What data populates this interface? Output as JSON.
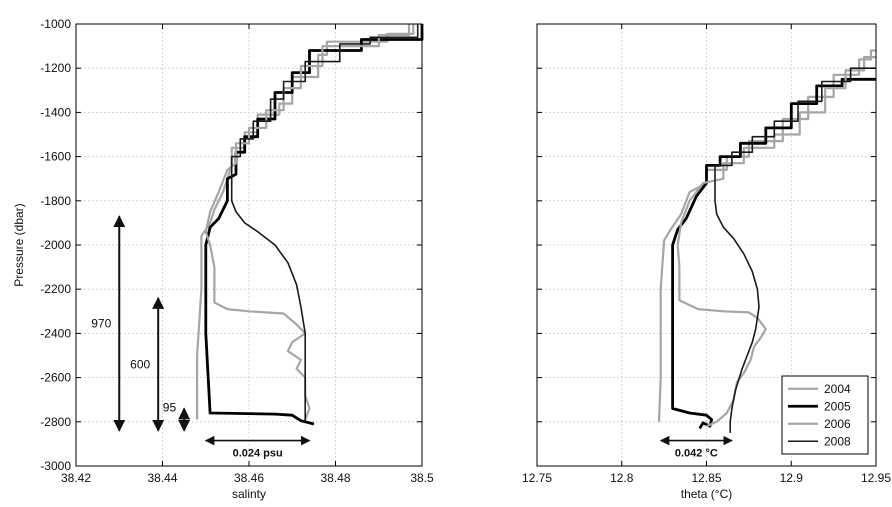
{
  "chart_data": [
    {
      "type": "line",
      "xlabel": "salinty",
      "ylabel": "Pressure (dbar)",
      "xlim": [
        38.42,
        38.5
      ],
      "ylim": [
        -3000,
        -1000
      ],
      "xticks": [
        "38.42",
        "38.44",
        "38.46",
        "38.48",
        "38.5"
      ],
      "yticks": [
        "-1000",
        "-1200",
        "-1400",
        "-1600",
        "-1800",
        "-2000",
        "-2200",
        "-2400",
        "-2600",
        "-2800",
        "-3000"
      ],
      "grid": true,
      "series": [
        {
          "name": "2004",
          "color": "#a6a6a6",
          "width": 2.2,
          "points": [
            [
              38.498,
              -1000
            ],
            [
              38.498,
              -1045
            ],
            [
              38.492,
              -1045
            ],
            [
              38.492,
              -1080
            ],
            [
              38.478,
              -1080
            ],
            [
              38.478,
              -1140
            ],
            [
              38.476,
              -1140
            ],
            [
              38.476,
              -1240
            ],
            [
              38.47,
              -1240
            ],
            [
              38.47,
              -1360
            ],
            [
              38.467,
              -1360
            ],
            [
              38.467,
              -1410
            ],
            [
              38.462,
              -1410
            ],
            [
              38.462,
              -1490
            ],
            [
              38.459,
              -1490
            ],
            [
              38.459,
              -1560
            ],
            [
              38.456,
              -1560
            ],
            [
              38.456,
              -1640
            ],
            [
              38.455,
              -1700
            ],
            [
              38.454,
              -1760
            ],
            [
              38.452,
              -1840
            ],
            [
              38.451,
              -1900
            ],
            [
              38.449,
              -1960
            ],
            [
              38.449,
              -2200
            ],
            [
              38.448,
              -2500
            ],
            [
              38.448,
              -2790
            ]
          ]
        },
        {
          "name": "2005",
          "color": "#000000",
          "width": 2.8,
          "points": [
            [
              38.5,
              -1000
            ],
            [
              38.5,
              -1070
            ],
            [
              38.486,
              -1070
            ],
            [
              38.486,
              -1120
            ],
            [
              38.474,
              -1120
            ],
            [
              38.474,
              -1220
            ],
            [
              38.47,
              -1220
            ],
            [
              38.47,
              -1310
            ],
            [
              38.466,
              -1310
            ],
            [
              38.466,
              -1430
            ],
            [
              38.462,
              -1430
            ],
            [
              38.462,
              -1510
            ],
            [
              38.459,
              -1510
            ],
            [
              38.459,
              -1580
            ],
            [
              38.457,
              -1580
            ],
            [
              38.457,
              -1680
            ],
            [
              38.455,
              -1700
            ],
            [
              38.455,
              -1800
            ],
            [
              38.453,
              -1880
            ],
            [
              38.451,
              -1920
            ],
            [
              38.45,
              -2000
            ],
            [
              38.45,
              -2400
            ],
            [
              38.451,
              -2760
            ],
            [
              38.466,
              -2765
            ],
            [
              38.47,
              -2770
            ],
            [
              38.472,
              -2795
            ],
            [
              38.475,
              -2810
            ]
          ]
        },
        {
          "name": "2006",
          "color": "#a6a6a6",
          "width": 2.2,
          "points": [
            [
              38.497,
              -1000
            ],
            [
              38.497,
              -1050
            ],
            [
              38.49,
              -1050
            ],
            [
              38.49,
              -1100
            ],
            [
              38.477,
              -1100
            ],
            [
              38.477,
              -1190
            ],
            [
              38.472,
              -1190
            ],
            [
              38.472,
              -1290
            ],
            [
              38.468,
              -1290
            ],
            [
              38.468,
              -1390
            ],
            [
              38.464,
              -1390
            ],
            [
              38.464,
              -1470
            ],
            [
              38.46,
              -1470
            ],
            [
              38.46,
              -1540
            ],
            [
              38.457,
              -1540
            ],
            [
              38.457,
              -1630
            ],
            [
              38.455,
              -1660
            ],
            [
              38.453,
              -1760
            ],
            [
              38.451,
              -1850
            ],
            [
              38.45,
              -1940
            ],
            [
              38.451,
              -2000
            ],
            [
              38.452,
              -2100
            ],
            [
              38.452,
              -2260
            ],
            [
              38.455,
              -2290
            ],
            [
              38.46,
              -2300
            ],
            [
              38.468,
              -2310
            ],
            [
              38.471,
              -2360
            ],
            [
              38.473,
              -2400
            ],
            [
              38.47,
              -2440
            ],
            [
              38.469,
              -2480
            ],
            [
              38.472,
              -2520
            ],
            [
              38.471,
              -2560
            ],
            [
              38.473,
              -2600
            ],
            [
              38.473,
              -2680
            ],
            [
              38.474,
              -2740
            ],
            [
              38.473,
              -2790
            ]
          ]
        },
        {
          "name": "2008",
          "color": "#1a1a1a",
          "width": 1.6,
          "points": [
            [
              38.499,
              -1000
            ],
            [
              38.499,
              -1060
            ],
            [
              38.488,
              -1060
            ],
            [
              38.488,
              -1090
            ],
            [
              38.481,
              -1090
            ],
            [
              38.481,
              -1170
            ],
            [
              38.473,
              -1170
            ],
            [
              38.473,
              -1260
            ],
            [
              38.468,
              -1260
            ],
            [
              38.468,
              -1340
            ],
            [
              38.465,
              -1340
            ],
            [
              38.465,
              -1440
            ],
            [
              38.461,
              -1440
            ],
            [
              38.461,
              -1520
            ],
            [
              38.458,
              -1520
            ],
            [
              38.458,
              -1600
            ],
            [
              38.456,
              -1600
            ],
            [
              38.456,
              -1700
            ],
            [
              38.456,
              -1800
            ],
            [
              38.457,
              -1850
            ],
            [
              38.459,
              -1900
            ],
            [
              38.462,
              -1940
            ],
            [
              38.466,
              -2000
            ],
            [
              38.469,
              -2080
            ],
            [
              38.471,
              -2180
            ],
            [
              38.472,
              -2280
            ],
            [
              38.473,
              -2400
            ],
            [
              38.473,
              -2550
            ],
            [
              38.473,
              -2700
            ],
            [
              38.473,
              -2800
            ]
          ]
        }
      ],
      "annotations": [
        {
          "type": "range-arrow",
          "axis": "y",
          "x": 38.43,
          "from": -1870,
          "to": -2840,
          "label": "970"
        },
        {
          "type": "range-arrow",
          "axis": "y",
          "x": 38.439,
          "from": -2240,
          "to": -2840,
          "label": "600"
        },
        {
          "type": "range-arrow",
          "axis": "y",
          "x": 38.445,
          "from": -2740,
          "to": -2840,
          "label": "95"
        },
        {
          "type": "range-arrow",
          "axis": "x",
          "y": -2885,
          "from": 38.45,
          "to": 38.474,
          "label": "0.024 psu"
        }
      ]
    },
    {
      "type": "line",
      "xlabel": "theta  (°C)",
      "ylabel": "",
      "xlim": [
        12.75,
        12.95
      ],
      "ylim": [
        -3000,
        -1000
      ],
      "xticks": [
        "12.75",
        "12.8",
        "12.85",
        "12.9",
        "12.95"
      ],
      "grid": true,
      "legend": "bottom-right",
      "series": [
        {
          "name": "2004",
          "color": "#a6a6a6",
          "width": 2.2,
          "points": [
            [
              12.95,
              -1120
            ],
            [
              12.947,
              -1120
            ],
            [
              12.947,
              -1160
            ],
            [
              12.94,
              -1160
            ],
            [
              12.94,
              -1230
            ],
            [
              12.925,
              -1230
            ],
            [
              12.925,
              -1330
            ],
            [
              12.91,
              -1330
            ],
            [
              12.91,
              -1430
            ],
            [
              12.895,
              -1430
            ],
            [
              12.895,
              -1530
            ],
            [
              12.875,
              -1530
            ],
            [
              12.875,
              -1600
            ],
            [
              12.862,
              -1600
            ],
            [
              12.862,
              -1660
            ],
            [
              12.85,
              -1660
            ],
            [
              12.85,
              -1720
            ],
            [
              12.84,
              -1760
            ],
            [
              12.835,
              -1860
            ],
            [
              12.828,
              -1940
            ],
            [
              12.825,
              -1980
            ],
            [
              12.823,
              -2200
            ],
            [
              12.823,
              -2600
            ],
            [
              12.822,
              -2800
            ]
          ]
        },
        {
          "name": "2005",
          "color": "#000000",
          "width": 2.8,
          "points": [
            [
              12.95,
              -1250
            ],
            [
              12.93,
              -1250
            ],
            [
              12.93,
              -1280
            ],
            [
              12.915,
              -1280
            ],
            [
              12.915,
              -1360
            ],
            [
              12.9,
              -1360
            ],
            [
              12.9,
              -1470
            ],
            [
              12.885,
              -1470
            ],
            [
              12.885,
              -1540
            ],
            [
              12.87,
              -1540
            ],
            [
              12.87,
              -1600
            ],
            [
              12.858,
              -1600
            ],
            [
              12.858,
              -1640
            ],
            [
              12.85,
              -1640
            ],
            [
              12.85,
              -1720
            ],
            [
              12.844,
              -1780
            ],
            [
              12.838,
              -1880
            ],
            [
              12.833,
              -1930
            ],
            [
              12.83,
              -2000
            ],
            [
              12.83,
              -2500
            ],
            [
              12.83,
              -2740
            ],
            [
              12.84,
              -2760
            ],
            [
              12.85,
              -2770
            ],
            [
              12.853,
              -2790
            ],
            [
              12.852,
              -2820
            ],
            [
              12.848,
              -2805
            ],
            [
              12.846,
              -2830
            ]
          ]
        },
        {
          "name": "2006",
          "color": "#a6a6a6",
          "width": 2.2,
          "points": [
            [
              12.95,
              -1150
            ],
            [
              12.943,
              -1150
            ],
            [
              12.943,
              -1210
            ],
            [
              12.932,
              -1210
            ],
            [
              12.932,
              -1290
            ],
            [
              12.92,
              -1290
            ],
            [
              12.92,
              -1400
            ],
            [
              12.905,
              -1400
            ],
            [
              12.905,
              -1500
            ],
            [
              12.89,
              -1500
            ],
            [
              12.89,
              -1560
            ],
            [
              12.872,
              -1560
            ],
            [
              12.872,
              -1630
            ],
            [
              12.86,
              -1630
            ],
            [
              12.86,
              -1700
            ],
            [
              12.848,
              -1720
            ],
            [
              12.84,
              -1800
            ],
            [
              12.835,
              -1900
            ],
            [
              12.833,
              -2000
            ],
            [
              12.834,
              -2100
            ],
            [
              12.834,
              -2250
            ],
            [
              12.845,
              -2290
            ],
            [
              12.86,
              -2300
            ],
            [
              12.875,
              -2305
            ],
            [
              12.88,
              -2330
            ],
            [
              12.885,
              -2380
            ],
            [
              12.882,
              -2420
            ],
            [
              12.878,
              -2460
            ],
            [
              12.876,
              -2520
            ],
            [
              12.872,
              -2580
            ],
            [
              12.868,
              -2620
            ],
            [
              12.866,
              -2700
            ],
            [
              12.862,
              -2760
            ],
            [
              12.856,
              -2800
            ],
            [
              12.85,
              -2820
            ]
          ]
        },
        {
          "name": "2008",
          "color": "#1a1a1a",
          "width": 1.6,
          "points": [
            [
              12.95,
              -1200
            ],
            [
              12.935,
              -1200
            ],
            [
              12.935,
              -1260
            ],
            [
              12.918,
              -1260
            ],
            [
              12.918,
              -1350
            ],
            [
              12.904,
              -1350
            ],
            [
              12.904,
              -1440
            ],
            [
              12.89,
              -1440
            ],
            [
              12.89,
              -1510
            ],
            [
              12.877,
              -1510
            ],
            [
              12.877,
              -1580
            ],
            [
              12.865,
              -1580
            ],
            [
              12.865,
              -1640
            ],
            [
              12.855,
              -1640
            ],
            [
              12.855,
              -1700
            ],
            [
              12.855,
              -1800
            ],
            [
              12.856,
              -1860
            ],
            [
              12.86,
              -1920
            ],
            [
              12.866,
              -1970
            ],
            [
              12.872,
              -2040
            ],
            [
              12.877,
              -2120
            ],
            [
              12.88,
              -2200
            ],
            [
              12.881,
              -2280
            ],
            [
              12.879,
              -2380
            ],
            [
              12.877,
              -2440
            ],
            [
              12.874,
              -2500
            ],
            [
              12.871,
              -2560
            ],
            [
              12.867,
              -2660
            ],
            [
              12.865,
              -2740
            ],
            [
              12.864,
              -2800
            ],
            [
              12.864,
              -2850
            ]
          ]
        }
      ],
      "annotations": [
        {
          "type": "range-arrow",
          "axis": "x",
          "y": -2885,
          "from": 12.823,
          "to": 12.865,
          "label": "0.042 °C"
        }
      ]
    }
  ]
}
